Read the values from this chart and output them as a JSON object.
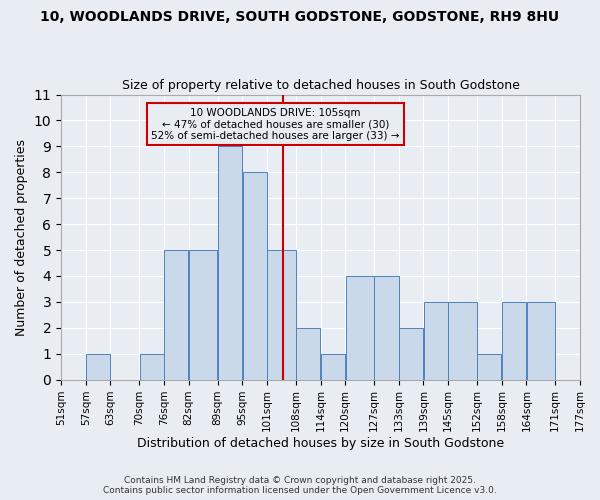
{
  "title1": "10, WOODLANDS DRIVE, SOUTH GODSTONE, GODSTONE, RH9 8HU",
  "title2": "Size of property relative to detached houses in South Godstone",
  "xlabel": "Distribution of detached houses by size in South Godstone",
  "ylabel": "Number of detached properties",
  "bins": [
    51,
    57,
    63,
    70,
    76,
    82,
    89,
    95,
    101,
    108,
    114,
    120,
    127,
    133,
    139,
    145,
    152,
    158,
    164,
    171,
    177
  ],
  "bin_labels": [
    "51sqm",
    "57sqm",
    "63sqm",
    "70sqm",
    "76sqm",
    "82sqm",
    "89sqm",
    "95sqm",
    "101sqm",
    "108sqm",
    "114sqm",
    "120sqm",
    "127sqm",
    "133sqm",
    "139sqm",
    "145sqm",
    "152sqm",
    "158sqm",
    "164sqm",
    "171sqm",
    "177sqm"
  ],
  "values": [
    0,
    1,
    0,
    1,
    5,
    5,
    9,
    8,
    5,
    2,
    1,
    4,
    4,
    2,
    3,
    3,
    1,
    3,
    3,
    0
  ],
  "bar_color": "#c9d9ea",
  "bar_edge_color": "#4f81bd",
  "vline_x": 105,
  "vline_color": "#cc0000",
  "annotation_text": "10 WOODLANDS DRIVE: 105sqm\n← 47% of detached houses are smaller (30)\n52% of semi-detached houses are larger (33) →",
  "annotation_box_color": "#cc0000",
  "ylim": [
    0,
    11
  ],
  "yticks": [
    0,
    1,
    2,
    3,
    4,
    5,
    6,
    7,
    8,
    9,
    10,
    11
  ],
  "background_color": "#e8edf4",
  "grid_color": "#ffffff",
  "footnote": "Contains HM Land Registry data © Crown copyright and database right 2025.\nContains public sector information licensed under the Open Government Licence v3.0."
}
